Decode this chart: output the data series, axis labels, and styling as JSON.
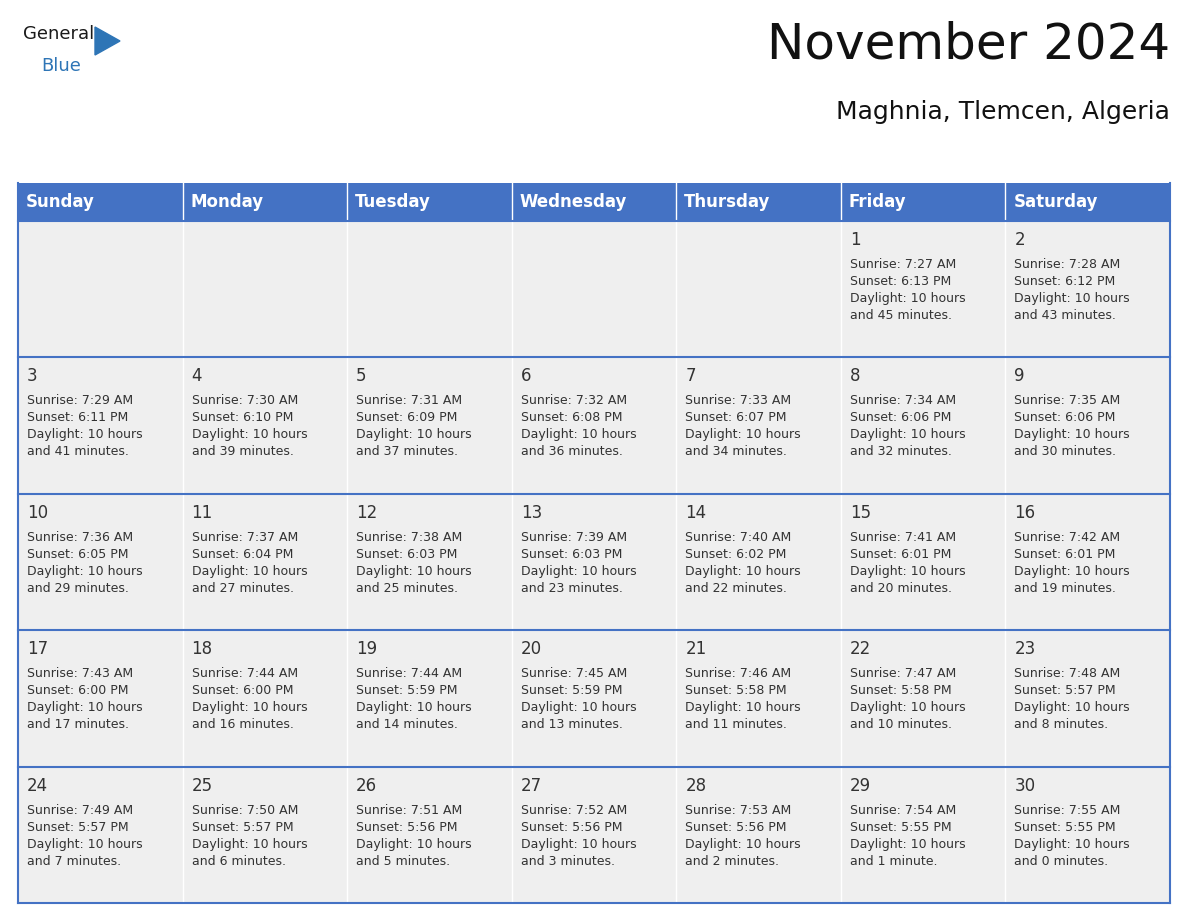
{
  "title": "November 2024",
  "subtitle": "Maghnia, Tlemcen, Algeria",
  "days_of_week": [
    "Sunday",
    "Monday",
    "Tuesday",
    "Wednesday",
    "Thursday",
    "Friday",
    "Saturday"
  ],
  "header_bg": "#4472C4",
  "header_text": "#FFFFFF",
  "row_bg": "#EFEFEF",
  "cell_text_color": "#333333",
  "day_number_color": "#333333",
  "grid_line_color": "#4472C4",
  "calendar_data": [
    [
      null,
      null,
      null,
      null,
      null,
      {
        "day": 1,
        "sunrise": "7:27 AM",
        "sunset": "6:13 PM",
        "daylight": "10 hours and 45 minutes."
      },
      {
        "day": 2,
        "sunrise": "7:28 AM",
        "sunset": "6:12 PM",
        "daylight": "10 hours and 43 minutes."
      }
    ],
    [
      {
        "day": 3,
        "sunrise": "7:29 AM",
        "sunset": "6:11 PM",
        "daylight": "10 hours and 41 minutes."
      },
      {
        "day": 4,
        "sunrise": "7:30 AM",
        "sunset": "6:10 PM",
        "daylight": "10 hours and 39 minutes."
      },
      {
        "day": 5,
        "sunrise": "7:31 AM",
        "sunset": "6:09 PM",
        "daylight": "10 hours and 37 minutes."
      },
      {
        "day": 6,
        "sunrise": "7:32 AM",
        "sunset": "6:08 PM",
        "daylight": "10 hours and 36 minutes."
      },
      {
        "day": 7,
        "sunrise": "7:33 AM",
        "sunset": "6:07 PM",
        "daylight": "10 hours and 34 minutes."
      },
      {
        "day": 8,
        "sunrise": "7:34 AM",
        "sunset": "6:06 PM",
        "daylight": "10 hours and 32 minutes."
      },
      {
        "day": 9,
        "sunrise": "7:35 AM",
        "sunset": "6:06 PM",
        "daylight": "10 hours and 30 minutes."
      }
    ],
    [
      {
        "day": 10,
        "sunrise": "7:36 AM",
        "sunset": "6:05 PM",
        "daylight": "10 hours and 29 minutes."
      },
      {
        "day": 11,
        "sunrise": "7:37 AM",
        "sunset": "6:04 PM",
        "daylight": "10 hours and 27 minutes."
      },
      {
        "day": 12,
        "sunrise": "7:38 AM",
        "sunset": "6:03 PM",
        "daylight": "10 hours and 25 minutes."
      },
      {
        "day": 13,
        "sunrise": "7:39 AM",
        "sunset": "6:03 PM",
        "daylight": "10 hours and 23 minutes."
      },
      {
        "day": 14,
        "sunrise": "7:40 AM",
        "sunset": "6:02 PM",
        "daylight": "10 hours and 22 minutes."
      },
      {
        "day": 15,
        "sunrise": "7:41 AM",
        "sunset": "6:01 PM",
        "daylight": "10 hours and 20 minutes."
      },
      {
        "day": 16,
        "sunrise": "7:42 AM",
        "sunset": "6:01 PM",
        "daylight": "10 hours and 19 minutes."
      }
    ],
    [
      {
        "day": 17,
        "sunrise": "7:43 AM",
        "sunset": "6:00 PM",
        "daylight": "10 hours and 17 minutes."
      },
      {
        "day": 18,
        "sunrise": "7:44 AM",
        "sunset": "6:00 PM",
        "daylight": "10 hours and 16 minutes."
      },
      {
        "day": 19,
        "sunrise": "7:44 AM",
        "sunset": "5:59 PM",
        "daylight": "10 hours and 14 minutes."
      },
      {
        "day": 20,
        "sunrise": "7:45 AM",
        "sunset": "5:59 PM",
        "daylight": "10 hours and 13 minutes."
      },
      {
        "day": 21,
        "sunrise": "7:46 AM",
        "sunset": "5:58 PM",
        "daylight": "10 hours and 11 minutes."
      },
      {
        "day": 22,
        "sunrise": "7:47 AM",
        "sunset": "5:58 PM",
        "daylight": "10 hours and 10 minutes."
      },
      {
        "day": 23,
        "sunrise": "7:48 AM",
        "sunset": "5:57 PM",
        "daylight": "10 hours and 8 minutes."
      }
    ],
    [
      {
        "day": 24,
        "sunrise": "7:49 AM",
        "sunset": "5:57 PM",
        "daylight": "10 hours and 7 minutes."
      },
      {
        "day": 25,
        "sunrise": "7:50 AM",
        "sunset": "5:57 PM",
        "daylight": "10 hours and 6 minutes."
      },
      {
        "day": 26,
        "sunrise": "7:51 AM",
        "sunset": "5:56 PM",
        "daylight": "10 hours and 5 minutes."
      },
      {
        "day": 27,
        "sunrise": "7:52 AM",
        "sunset": "5:56 PM",
        "daylight": "10 hours and 3 minutes."
      },
      {
        "day": 28,
        "sunrise": "7:53 AM",
        "sunset": "5:56 PM",
        "daylight": "10 hours and 2 minutes."
      },
      {
        "day": 29,
        "sunrise": "7:54 AM",
        "sunset": "5:55 PM",
        "daylight": "10 hours and 1 minute."
      },
      {
        "day": 30,
        "sunrise": "7:55 AM",
        "sunset": "5:55 PM",
        "daylight": "10 hours and 0 minutes."
      }
    ]
  ],
  "logo_general_color": "#1a1a1a",
  "logo_blue_color": "#2E75B6",
  "title_fontsize": 36,
  "subtitle_fontsize": 18,
  "header_fontsize": 12,
  "day_number_fontsize": 12,
  "cell_text_fontsize": 9
}
